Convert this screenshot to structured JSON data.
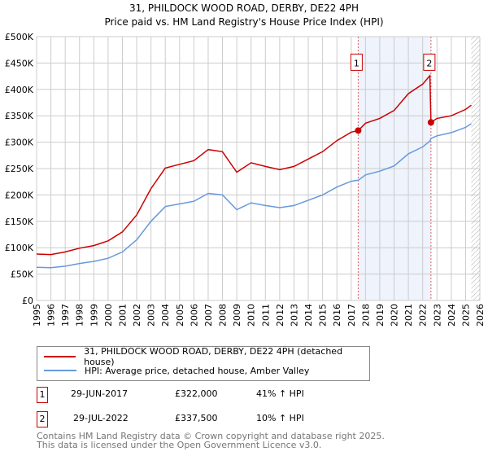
{
  "chart_data": {
    "type": "line",
    "title": "31, PHILDOCK WOOD ROAD, DERBY, DE22 4PH",
    "subtitle": "Price paid vs. HM Land Registry's House Price Index (HPI)",
    "xlim": [
      1995,
      2026
    ],
    "ylim": [
      0,
      500000
    ],
    "x_ticks": [
      "1995",
      "1996",
      "1997",
      "1998",
      "1999",
      "2000",
      "2001",
      "2002",
      "2003",
      "2004",
      "2005",
      "2006",
      "2007",
      "2008",
      "2009",
      "2010",
      "2011",
      "2012",
      "2013",
      "2014",
      "2015",
      "2016",
      "2017",
      "2018",
      "2019",
      "2020",
      "2021",
      "2022",
      "2023",
      "2024",
      "2025",
      "2026"
    ],
    "y_ticks": [
      {
        "v": 0,
        "label": "£0"
      },
      {
        "v": 50000,
        "label": "£50K"
      },
      {
        "v": 100000,
        "label": "£100K"
      },
      {
        "v": 150000,
        "label": "£150K"
      },
      {
        "v": 200000,
        "label": "£200K"
      },
      {
        "v": 250000,
        "label": "£250K"
      },
      {
        "v": 300000,
        "label": "£300K"
      },
      {
        "v": 350000,
        "label": "£350K"
      },
      {
        "v": 400000,
        "label": "£400K"
      },
      {
        "v": 450000,
        "label": "£450K"
      },
      {
        "v": 500000,
        "label": "£500K"
      }
    ],
    "grid": true,
    "series": [
      {
        "name": "31, PHILDOCK WOOD ROAD, DERBY, DE22 4PH (detached house)",
        "color": "#cc0000",
        "x": [
          1995,
          1996,
          1997,
          1998,
          1999,
          2000,
          2001,
          2002,
          2003,
          2004,
          2005,
          2006,
          2007,
          2008,
          2009,
          2010,
          2011,
          2012,
          2013,
          2014,
          2015,
          2016,
          2017,
          2017.5,
          2018,
          2019,
          2020,
          2021,
          2022,
          2022.5,
          2022.58,
          2023,
          2024,
          2025,
          2025.4
        ],
        "y": [
          88000,
          87000,
          92000,
          99000,
          104000,
          113000,
          130000,
          162000,
          212000,
          251000,
          258000,
          265000,
          286000,
          282000,
          243000,
          261000,
          254000,
          248000,
          254000,
          268000,
          282000,
          303000,
          319000,
          322000,
          336000,
          345000,
          360000,
          392000,
          410000,
          426000,
          337500,
          345000,
          350000,
          362000,
          370000
        ]
      },
      {
        "name": "HPI: Average price, detached house, Amber Valley",
        "color": "#6699dd",
        "x": [
          1995,
          1996,
          1997,
          1998,
          1999,
          2000,
          2001,
          2002,
          2003,
          2004,
          2005,
          2006,
          2007,
          2008,
          2009,
          2010,
          2011,
          2012,
          2013,
          2014,
          2015,
          2016,
          2017,
          2017.5,
          2018,
          2019,
          2020,
          2021,
          2022,
          2022.5,
          2022.58,
          2023,
          2024,
          2025,
          2025.4
        ],
        "y": [
          63000,
          62000,
          65000,
          70000,
          74000,
          80000,
          92000,
          115000,
          150000,
          178000,
          183000,
          188000,
          203000,
          200000,
          172000,
          185000,
          180000,
          176000,
          180000,
          190000,
          200000,
          215000,
          226000,
          228000,
          238000,
          245000,
          255000,
          278000,
          291000,
          302000,
          307000,
          312000,
          318000,
          328000,
          335000
        ]
      }
    ],
    "sales": [
      {
        "id": "1",
        "x": 2017.49,
        "price": 322000,
        "date": "29-JUN-2017",
        "price_label": "£322,000",
        "hpi_label": "41% ↑ HPI"
      },
      {
        "id": "2",
        "x": 2022.58,
        "price": 337500,
        "date": "29-JUL-2022",
        "price_label": "£337,500",
        "hpi_label": "10% ↑ HPI"
      }
    ],
    "highlight_range": [
      2017.49,
      2022.58
    ],
    "forecast_hatch_from": 2025.4,
    "legend_position": "bottom"
  },
  "footer": {
    "line1": "Contains HM Land Registry data © Crown copyright and database right 2025.",
    "line2": "This data is licensed under the Open Government Licence v3.0."
  }
}
